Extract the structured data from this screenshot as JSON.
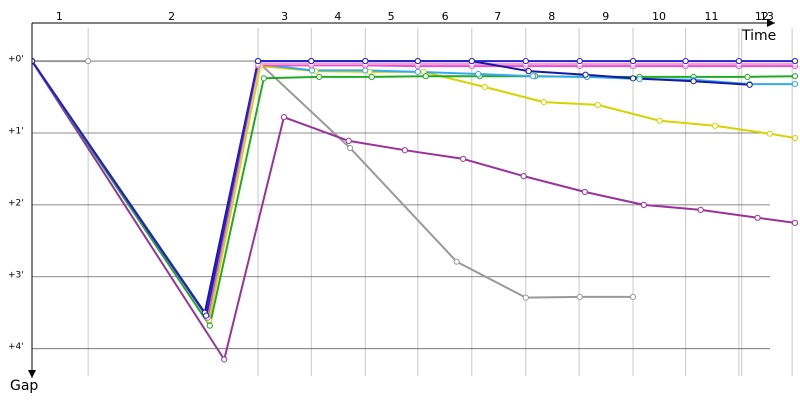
{
  "chart_data": {
    "type": "line",
    "x_label": "Time",
    "y_label": "Gap",
    "xlim": [
      0,
      10.6
    ],
    "ylim": [
      -0.46,
      4.38
    ],
    "y_inverted": true,
    "xticks": [
      {
        "value": 0.38,
        "label": "1"
      },
      {
        "value": 1.94,
        "label": "2"
      },
      {
        "value": 3.51,
        "label": "3"
      },
      {
        "value": 4.25,
        "label": "4"
      },
      {
        "value": 4.99,
        "label": "5"
      },
      {
        "value": 5.74,
        "label": "6"
      },
      {
        "value": 6.47,
        "label": "7"
      },
      {
        "value": 7.22,
        "label": "8"
      },
      {
        "value": 7.97,
        "label": "9"
      },
      {
        "value": 8.71,
        "label": "10"
      },
      {
        "value": 9.44,
        "label": "11"
      },
      {
        "value": 10.14,
        "label": "12"
      },
      {
        "value": 10.21,
        "label": "13"
      }
    ],
    "lap_boundaries": [
      0.78,
      3.14,
      3.88,
      4.63,
      5.36,
      6.11,
      6.86,
      7.6,
      8.35,
      9.08,
      9.82,
      9.86,
      10.56
    ],
    "yticks": [
      {
        "value": 0,
        "label": "+0'"
      },
      {
        "value": 1,
        "label": "+1'"
      },
      {
        "value": 2,
        "label": "+2'"
      },
      {
        "value": 3,
        "label": "+3'"
      },
      {
        "value": 4,
        "label": "+4'"
      }
    ],
    "grid": true,
    "series": [
      {
        "color": "#999999",
        "x": [
          0,
          0.78,
          1.97,
          3.14,
          4.42,
          5.9,
          6.86,
          7.61,
          8.35
        ],
        "values": [
          0,
          0,
          null,
          0.01,
          1.21,
          2.79,
          3.29,
          3.28,
          3.28
        ]
      },
      {
        "color": "#993399",
        "x": [
          0,
          2.67,
          3.5,
          4.4,
          5.18,
          5.99,
          6.83,
          7.68,
          8.5,
          9.29,
          10.08,
          10.6
        ],
        "values": [
          0,
          4.15,
          0.78,
          1.11,
          1.24,
          1.36,
          1.6,
          1.82,
          2.0,
          2.07,
          2.18,
          2.25
        ]
      },
      {
        "color": "#d4d400",
        "x": [
          0,
          2.46,
          3.17,
          3.94,
          4.69,
          5.44,
          6.29,
          7.11,
          7.86,
          8.72,
          9.49,
          10.25,
          10.6
        ],
        "values": [
          0,
          3.6,
          0.07,
          0.14,
          0.15,
          0.15,
          0.36,
          0.57,
          0.61,
          0.83,
          0.9,
          1.01,
          1.07
        ]
      },
      {
        "color": "#22aa22",
        "x": [
          0,
          2.47,
          3.22,
          3.99,
          4.72,
          5.47,
          6.22,
          6.99,
          7.71,
          8.44,
          9.19,
          9.94,
          10.6
        ],
        "values": [
          0,
          3.68,
          0.24,
          0.22,
          0.22,
          0.21,
          0.21,
          0.21,
          0.22,
          0.22,
          0.22,
          0.22,
          0.21
        ]
      },
      {
        "color": "#33aaee",
        "x": [
          0,
          2.43,
          3.14,
          3.89,
          4.63,
          5.36,
          6.2,
          6.96,
          7.71,
          8.44,
          9.19,
          9.97,
          10.6
        ],
        "values": [
          0,
          3.55,
          0.04,
          0.13,
          0.13,
          0.15,
          0.18,
          0.21,
          0.22,
          0.25,
          0.26,
          0.32,
          0.32
        ]
      },
      {
        "color": "#dd55dd",
        "x": [
          0,
          2.44,
          3.14,
          3.88,
          4.63,
          5.36,
          6.11,
          6.86,
          7.61,
          8.35,
          9.08,
          9.82,
          10.6
        ],
        "values": [
          0,
          3.57,
          0.06,
          0.06,
          0.06,
          0.07,
          0.07,
          0.07,
          0.07,
          0.07,
          0.07,
          0.07,
          0.07
        ]
      },
      {
        "color": "#ff99cc",
        "x": [
          3.14,
          3.88,
          4.63,
          5.36,
          6.11,
          6.86,
          7.61,
          8.35,
          9.08,
          9.82,
          10.6
        ],
        "values": [
          0.04,
          0.04,
          0.04,
          0.04,
          0.04,
          0.04,
          0.04,
          0.04,
          0.04,
          0.04,
          0.04
        ]
      },
      {
        "color": "#1a1aa0",
        "x": [
          0,
          2.4,
          3.14,
          3.88,
          4.63,
          5.36,
          6.11,
          6.9,
          7.69,
          8.35,
          9.19,
          9.97
        ],
        "values": [
          0,
          3.5,
          0,
          0,
          0,
          0,
          0,
          0.14,
          0.19,
          0.24,
          0.28,
          0.33
        ]
      },
      {
        "color": "#2222cc",
        "x": [
          0,
          2.42,
          3.14,
          3.88,
          4.63,
          5.36,
          6.11,
          6.86,
          7.61,
          8.35,
          9.08,
          9.82,
          10.6
        ],
        "values": [
          0,
          3.54,
          0,
          0,
          0,
          0,
          0,
          0,
          0,
          0,
          0,
          0,
          0
        ]
      }
    ]
  }
}
